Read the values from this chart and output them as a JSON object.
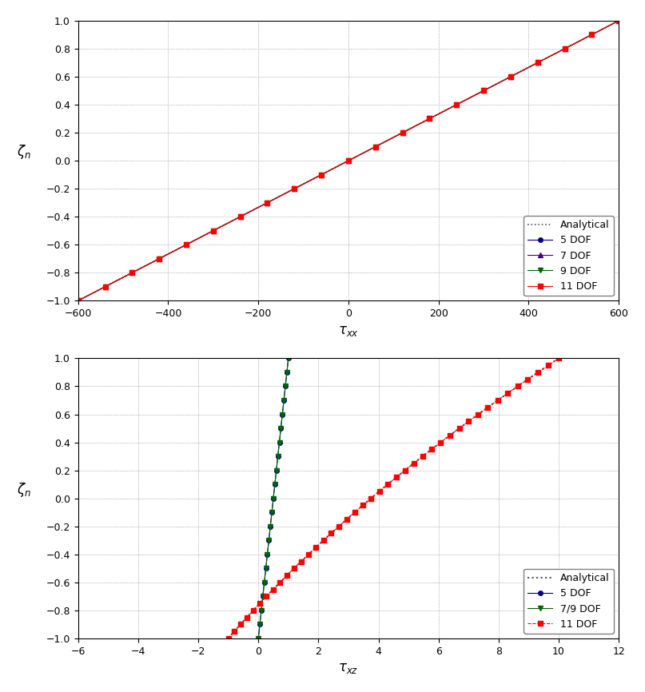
{
  "plot1": {
    "title": "",
    "xlabel": "$\\tau_{xx}$",
    "ylabel": "$\\zeta_n$",
    "xlim": [
      -600,
      600
    ],
    "ylim": [
      -1,
      1
    ],
    "xticks": [
      -600,
      -400,
      -200,
      0,
      200,
      400,
      600
    ],
    "yticks": [
      -1,
      -0.8,
      -0.6,
      -0.4,
      -0.2,
      0,
      0.2,
      0.4,
      0.6,
      0.8,
      1
    ],
    "analytical_color": "#555555",
    "dof5_color": "#00008B",
    "dof7_color": "#4B0082",
    "dof9_color": "#006400",
    "dof11_color": "#FF0000",
    "n_points": 21,
    "legend_entries": [
      "Analytical",
      "5 DOF",
      "7 DOF",
      "9 DOF",
      "11 DOF"
    ]
  },
  "plot2": {
    "title": "",
    "xlabel": "$\\tau_{xz}$",
    "ylabel": "$\\zeta_n$",
    "xlim": [
      -6,
      12
    ],
    "ylim": [
      -1,
      1
    ],
    "xticks": [
      -6,
      -4,
      -2,
      0,
      2,
      4,
      6,
      8,
      10,
      12
    ],
    "yticks": [
      -1,
      -0.8,
      -0.6,
      -0.4,
      -0.2,
      0,
      0.2,
      0.4,
      0.6,
      0.8,
      1
    ],
    "analytical_color": "#555555",
    "dof5_color": "#00008B",
    "dof79_color": "#006400",
    "dof11_color": "#FF0000",
    "legend_entries": [
      "Analytical",
      "5 DOF",
      "7/9 DOF",
      "11 DOF"
    ]
  }
}
